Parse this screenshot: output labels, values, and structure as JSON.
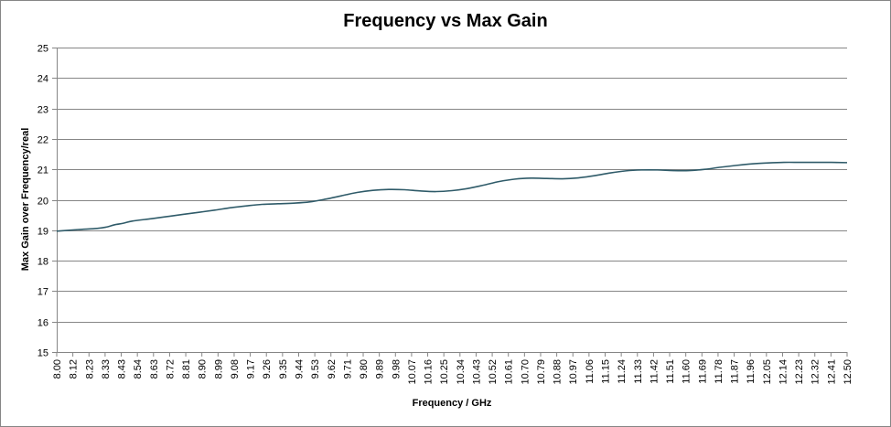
{
  "chart_data": {
    "type": "line",
    "title": "Frequency vs Max Gain",
    "xlabel": "Frequency / GHz",
    "ylabel": "Max Gain over Frequency/real",
    "ylim": [
      15,
      25
    ],
    "yticks": [
      15,
      16,
      17,
      18,
      19,
      20,
      21,
      22,
      23,
      24,
      25
    ],
    "xlim": [
      8.0,
      12.5
    ],
    "xtick_labels": [
      "8.00",
      "8.12",
      "8.23",
      "8.33",
      "8.43",
      "8.54",
      "8.63",
      "8.72",
      "8.81",
      "8.90",
      "8.99",
      "9.08",
      "9.17",
      "9.26",
      "9.35",
      "9.44",
      "9.53",
      "9.62",
      "9.71",
      "9.80",
      "9.89",
      "9.98",
      "10.07",
      "10.16",
      "10.25",
      "10.34",
      "10.43",
      "10.52",
      "10.61",
      "10.70",
      "10.79",
      "10.88",
      "10.97",
      "11.06",
      "11.15",
      "11.24",
      "11.33",
      "11.42",
      "11.51",
      "11.60",
      "11.69",
      "11.78",
      "11.87",
      "11.96",
      "12.05",
      "12.14",
      "12.23",
      "12.32",
      "12.41",
      "12.50"
    ],
    "grid": true,
    "legend": "none",
    "series": [
      {
        "color": "#2f5b69",
        "x": [
          8.0,
          8.12,
          8.23,
          8.28,
          8.33,
          8.38,
          8.43,
          8.54,
          8.63,
          8.72,
          8.81,
          8.9,
          8.99,
          9.08,
          9.17,
          9.26,
          9.35,
          9.44,
          9.53,
          9.62,
          9.71,
          9.8,
          9.89,
          9.98,
          10.07,
          10.16,
          10.25,
          10.34,
          10.43,
          10.52,
          10.61,
          10.7,
          10.79,
          10.88,
          10.97,
          11.06,
          11.15,
          11.24,
          11.33,
          11.42,
          11.51,
          11.6,
          11.69,
          11.78,
          11.87,
          11.96,
          12.05,
          12.14,
          12.23,
          12.32,
          12.41,
          12.5
        ],
        "y": [
          18.97,
          19.02,
          19.06,
          19.1,
          19.18,
          19.23,
          19.3,
          19.38,
          19.45,
          19.52,
          19.59,
          19.66,
          19.74,
          19.8,
          19.85,
          19.87,
          19.89,
          19.93,
          20.02,
          20.13,
          20.24,
          20.31,
          20.34,
          20.33,
          20.29,
          20.27,
          20.3,
          20.37,
          20.48,
          20.6,
          20.68,
          20.71,
          20.7,
          20.69,
          20.72,
          20.79,
          20.88,
          20.95,
          20.98,
          20.98,
          20.96,
          20.96,
          21.0,
          21.07,
          21.13,
          21.18,
          21.21,
          21.23,
          21.23,
          21.23,
          21.23,
          21.22
        ]
      }
    ]
  }
}
